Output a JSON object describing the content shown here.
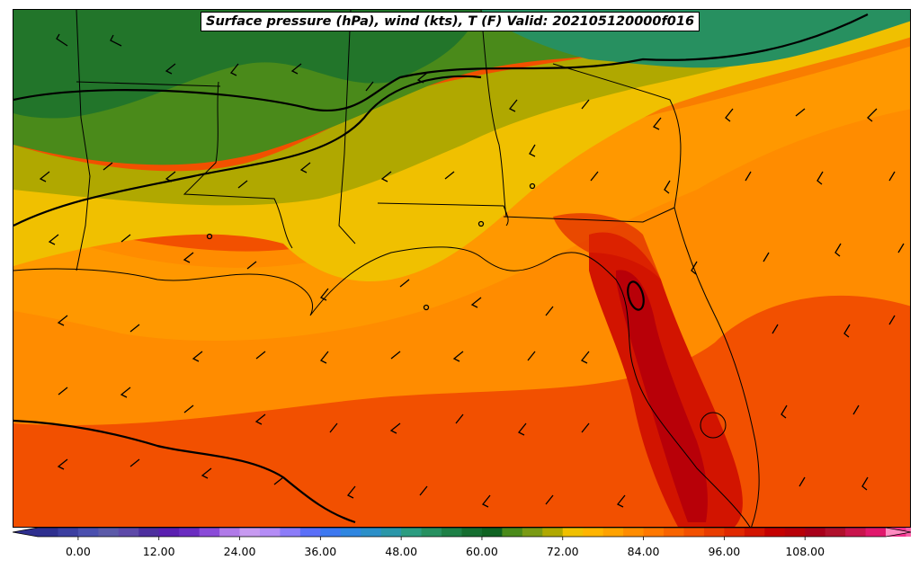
{
  "title": "Surface pressure (hPa), wind (kts), T (F) Valid: 202105120000f016",
  "colorbar": {
    "ticks": [
      "0.00",
      "12.00",
      "24.00",
      "36.00",
      "48.00",
      "60.00",
      "72.00",
      "84.00",
      "96.00",
      "108.00"
    ],
    "tick_values": [
      0,
      12,
      24,
      36,
      48,
      60,
      72,
      84,
      96,
      108
    ],
    "range": [
      -6,
      120
    ],
    "bin_width": 3,
    "colors": [
      "#2e2f8f",
      "#3b3ea0",
      "#4a4fae",
      "#5b5aa8",
      "#5d49a8",
      "#4d2f9e",
      "#5a1fb0",
      "#6a2cc0",
      "#8a4bd8",
      "#b07ae8",
      "#c79af0",
      "#b48cf5",
      "#8c7cf8",
      "#5a6ff8",
      "#3d78f0",
      "#2f86e0",
      "#2b8fc8",
      "#2a96a8",
      "#2b9c80",
      "#279060",
      "#1e8046",
      "#156e30",
      "#0f6322",
      "#4a8a1a",
      "#7a9a14",
      "#b0a800",
      "#f0c000",
      "#ffb400",
      "#ffa200",
      "#ff8c00",
      "#ff7800",
      "#f86400",
      "#f25000",
      "#e83c00",
      "#e02800",
      "#d21400",
      "#c40000",
      "#b80008",
      "#a8001a",
      "#b0102c",
      "#c8144c",
      "#e0186c",
      "#f0308c",
      "#f860a8",
      "#ff8ac0"
    ]
  },
  "legend": {
    "field": "T (F)",
    "pressure": "Surface pressure (hPa)",
    "wind": "wind (kts)"
  },
  "colors": {
    "cold_green": "#0f6322",
    "olive": "#7a9a14",
    "yellow": "#f0c000",
    "orange": "#ff8c00",
    "red_orange": "#f25000",
    "red": "#d21400",
    "dark_red": "#b80008"
  }
}
